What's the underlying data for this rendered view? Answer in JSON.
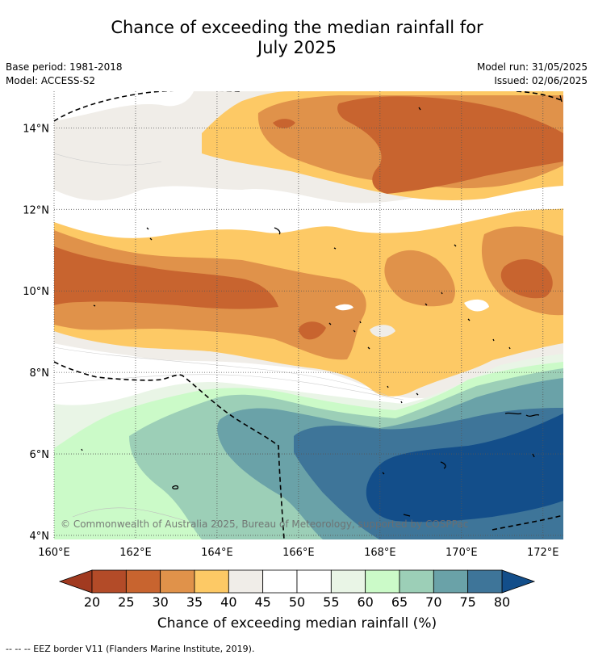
{
  "header": {
    "title_line1": "Chance of exceeding the median rainfall for",
    "title_line2": "July 2025",
    "base_period": "Base period: 1981-2018",
    "model": "Model: ACCESS-S2",
    "model_run": "Model run: 31/05/2025",
    "issued": "Issued: 02/06/2025"
  },
  "map": {
    "copyright": "© Commonwealth of Australia 2025, Bureau of Meteorology, supported by COSPPac",
    "colors": {
      "c20": "#a13a20",
      "c25": "#b34b28",
      "c30": "#c8642f",
      "c35": "#e0924a",
      "c40": "#fdc965",
      "c45": "#f0ede8",
      "c50": "#ffffff",
      "c55": "#ffffff",
      "c60": "#e9f5e6",
      "c65": "#cbfac8",
      "c70": "#9ccfb7",
      "c75": "#6aa2a8",
      "c80": "#3e7599",
      "c85": "#134e8a"
    }
  },
  "chart_data": {
    "type": "heatmap",
    "title": "Chance of exceeding the median rainfall for July 2025",
    "x_axis": {
      "label": "",
      "ticks": [
        "160°E",
        "162°E",
        "164°E",
        "166°E",
        "168°E",
        "170°E",
        "172°E"
      ],
      "range": [
        160,
        172.5
      ]
    },
    "y_axis": {
      "label": "",
      "ticks": [
        "4°N",
        "6°N",
        "8°N",
        "10°N",
        "12°N",
        "14°N"
      ],
      "range": [
        3.9,
        14.9
      ]
    },
    "grid": true,
    "colorbar": {
      "label": "Chance of exceeding median rainfall (%)",
      "ticks": [
        "20",
        "25",
        "30",
        "35",
        "40",
        "45",
        "50",
        "55",
        "60",
        "65",
        "70",
        "75",
        "80"
      ],
      "bins": [
        {
          "from": 20,
          "to": 25,
          "color": "#b34b28"
        },
        {
          "from": 25,
          "to": 30,
          "color": "#c8642f"
        },
        {
          "from": 30,
          "to": 35,
          "color": "#e0924a"
        },
        {
          "from": 35,
          "to": 40,
          "color": "#fdc965"
        },
        {
          "from": 40,
          "to": 45,
          "color": "#f0ede8"
        },
        {
          "from": 45,
          "to": 50,
          "color": "#ffffff"
        },
        {
          "from": 50,
          "to": 55,
          "color": "#ffffff"
        },
        {
          "from": 55,
          "to": 60,
          "color": "#e9f5e6"
        },
        {
          "from": 60,
          "to": 65,
          "color": "#cbfac8"
        },
        {
          "from": 65,
          "to": 70,
          "color": "#9ccfb7"
        },
        {
          "from": 70,
          "to": 75,
          "color": "#6aa2a8"
        },
        {
          "from": 75,
          "to": 80,
          "color": "#3e7599"
        }
      ],
      "under_color": "#a13a20",
      "over_color": "#134e8a"
    },
    "regions": [
      {
        "category": "40-45",
        "description": "band across north"
      },
      {
        "category": "30-35",
        "lat": [
          10,
          14.8
        ],
        "lon": [
          163.5,
          172.5
        ]
      },
      {
        "category": "25-30",
        "lat": [
          12,
          14.5
        ],
        "lon": [
          167,
          172.5
        ]
      },
      {
        "category": "25-30",
        "lat": [
          9.5,
          11.2
        ],
        "lon": [
          160,
          166
        ]
      },
      {
        "category": "35-40",
        "lat": [
          7.5,
          12.5
        ],
        "lon": [
          160,
          172.5
        ]
      },
      {
        "category": "60-65",
        "lat": [
          4,
          8
        ],
        "lon": [
          160,
          165
        ]
      },
      {
        "category": "70-75",
        "lat": [
          4.5,
          7.5
        ],
        "lon": [
          164,
          172.5
        ]
      },
      {
        "category": "75-80",
        "lat": [
          4.5,
          7
        ],
        "lon": [
          165.8,
          172.5
        ]
      },
      {
        "category": ">80",
        "lat": [
          4.5,
          6.2
        ],
        "lon": [
          167.6,
          172.5
        ]
      }
    ]
  },
  "footer": {
    "eez_note": "--  --  -- EEZ border V11 (Flanders Marine Institute, 2019)."
  }
}
